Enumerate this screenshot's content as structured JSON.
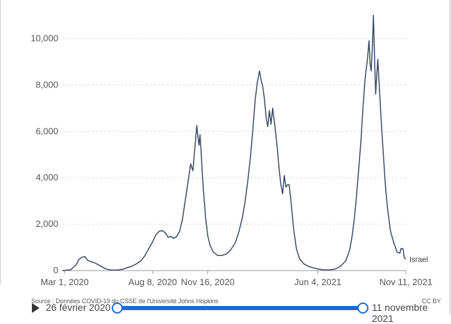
{
  "chart_data": {
    "type": "line",
    "xlabel": "",
    "ylabel": "",
    "ylim": [
      0,
      11000
    ],
    "y_ticks": [
      0,
      2000,
      4000,
      6000,
      8000,
      10000
    ],
    "y_tick_labels": [
      "0",
      "2,000",
      "4,000",
      "6,000",
      "8,000",
      "10,000"
    ],
    "x_range": [
      "2020-02-26",
      "2021-11-11"
    ],
    "x_ticks": [
      {
        "date": "2020-03-01",
        "label": "Mar 1, 2020"
      },
      {
        "date": "2020-08-08",
        "label": "Aug 8, 2020"
      },
      {
        "date": "2020-11-16",
        "label": "Nov 16, 2020"
      },
      {
        "date": "2021-06-04",
        "label": "Jun 4, 2021"
      },
      {
        "date": "2021-11-11",
        "label": "Nov 11, 2021"
      }
    ],
    "grid": true,
    "series": [
      {
        "name": "Israel",
        "color": "#3b4a66",
        "points": [
          [
            "2020-02-26",
            0
          ],
          [
            "2020-03-12",
            40
          ],
          [
            "2020-03-22",
            250
          ],
          [
            "2020-03-27",
            480
          ],
          [
            "2020-04-02",
            580
          ],
          [
            "2020-04-07",
            600
          ],
          [
            "2020-04-12",
            440
          ],
          [
            "2020-04-18",
            380
          ],
          [
            "2020-04-25",
            330
          ],
          [
            "2020-05-05",
            200
          ],
          [
            "2020-05-15",
            70
          ],
          [
            "2020-05-25",
            20
          ],
          [
            "2020-06-05",
            20
          ],
          [
            "2020-06-15",
            60
          ],
          [
            "2020-06-22",
            120
          ],
          [
            "2020-06-30",
            180
          ],
          [
            "2020-07-10",
            300
          ],
          [
            "2020-07-18",
            430
          ],
          [
            "2020-07-25",
            650
          ],
          [
            "2020-08-01",
            950
          ],
          [
            "2020-08-08",
            1250
          ],
          [
            "2020-08-14",
            1550
          ],
          [
            "2020-08-20",
            1700
          ],
          [
            "2020-08-26",
            1720
          ],
          [
            "2020-09-01",
            1600
          ],
          [
            "2020-09-05",
            1430
          ],
          [
            "2020-09-10",
            1480
          ],
          [
            "2020-09-14",
            1390
          ],
          [
            "2020-09-20",
            1450
          ],
          [
            "2020-09-26",
            1700
          ],
          [
            "2020-10-01",
            2200
          ],
          [
            "2020-10-06",
            3000
          ],
          [
            "2020-10-11",
            3800
          ],
          [
            "2020-10-16",
            4600
          ],
          [
            "2020-10-20",
            4300
          ],
          [
            "2020-10-24",
            5400
          ],
          [
            "2020-10-27",
            6250
          ],
          [
            "2020-10-29",
            5800
          ],
          [
            "2020-10-31",
            5400
          ],
          [
            "2020-11-02",
            5850
          ],
          [
            "2020-11-04",
            5100
          ],
          [
            "2020-11-06",
            4200
          ],
          [
            "2020-11-09",
            3200
          ],
          [
            "2020-11-12",
            2300
          ],
          [
            "2020-11-16",
            1500
          ],
          [
            "2020-11-20",
            1100
          ],
          [
            "2020-11-26",
            800
          ],
          [
            "2020-12-04",
            650
          ],
          [
            "2020-12-12",
            650
          ],
          [
            "2020-12-20",
            720
          ],
          [
            "2020-12-28",
            900
          ],
          [
            "2021-01-05",
            1200
          ],
          [
            "2021-01-12",
            1700
          ],
          [
            "2021-01-18",
            2300
          ],
          [
            "2021-01-23",
            3000
          ],
          [
            "2021-01-28",
            3900
          ],
          [
            "2021-02-02",
            5000
          ],
          [
            "2021-02-06",
            6100
          ],
          [
            "2021-02-10",
            7300
          ],
          [
            "2021-02-14",
            8100
          ],
          [
            "2021-02-18",
            8600
          ],
          [
            "2021-02-21",
            8200
          ],
          [
            "2021-02-24",
            7900
          ],
          [
            "2021-02-27",
            7400
          ],
          [
            "2021-03-02",
            6600
          ],
          [
            "2021-03-05",
            6200
          ],
          [
            "2021-03-08",
            6900
          ],
          [
            "2021-03-11",
            6300
          ],
          [
            "2021-03-14",
            7000
          ],
          [
            "2021-03-17",
            6400
          ],
          [
            "2021-03-20",
            5800
          ],
          [
            "2021-03-23",
            5100
          ],
          [
            "2021-03-26",
            4300
          ],
          [
            "2021-03-29",
            3700
          ],
          [
            "2021-04-01",
            3300
          ],
          [
            "2021-04-04",
            4100
          ],
          [
            "2021-04-07",
            3600
          ],
          [
            "2021-04-10",
            3700
          ],
          [
            "2021-04-13",
            3700
          ],
          [
            "2021-04-17",
            2800
          ],
          [
            "2021-04-21",
            1800
          ],
          [
            "2021-04-26",
            950
          ],
          [
            "2021-05-02",
            500
          ],
          [
            "2021-05-10",
            280
          ],
          [
            "2021-05-20",
            160
          ],
          [
            "2021-06-04",
            70
          ],
          [
            "2021-06-15",
            30
          ],
          [
            "2021-06-25",
            30
          ],
          [
            "2021-07-05",
            60
          ],
          [
            "2021-07-15",
            180
          ],
          [
            "2021-07-25",
            430
          ],
          [
            "2021-08-01",
            900
          ],
          [
            "2021-08-06",
            1600
          ],
          [
            "2021-08-11",
            2600
          ],
          [
            "2021-08-16",
            4000
          ],
          [
            "2021-08-21",
            5500
          ],
          [
            "2021-08-25",
            7000
          ],
          [
            "2021-08-29",
            8300
          ],
          [
            "2021-09-02",
            9100
          ],
          [
            "2021-09-05",
            9900
          ],
          [
            "2021-09-07",
            8900
          ],
          [
            "2021-09-09",
            8600
          ],
          [
            "2021-09-11",
            9600
          ],
          [
            "2021-09-13",
            11000
          ],
          [
            "2021-09-15",
            9200
          ],
          [
            "2021-09-17",
            7600
          ],
          [
            "2021-09-19",
            8400
          ],
          [
            "2021-09-21",
            9100
          ],
          [
            "2021-09-24",
            7800
          ],
          [
            "2021-09-27",
            6500
          ],
          [
            "2021-10-01",
            5000
          ],
          [
            "2021-10-05",
            3600
          ],
          [
            "2021-10-09",
            2600
          ],
          [
            "2021-10-14",
            1700
          ],
          [
            "2021-10-20",
            1200
          ],
          [
            "2021-10-26",
            800
          ],
          [
            "2021-10-31",
            750
          ],
          [
            "2021-11-02",
            950
          ],
          [
            "2021-11-06",
            930
          ],
          [
            "2021-11-08",
            550
          ],
          [
            "2021-11-11",
            500
          ]
        ]
      }
    ]
  },
  "footer": {
    "source": "Source : Données COVID-19 du CSSE de l'Université Johns Hopkins",
    "license": "CC BY"
  },
  "timeline": {
    "start_label": "26 février 2020",
    "end_label": "11 novembre 2021"
  }
}
